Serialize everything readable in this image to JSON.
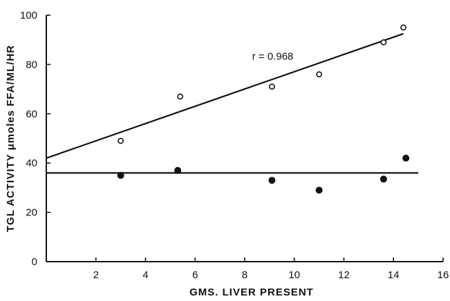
{
  "chart_data": {
    "type": "scatter",
    "title": "",
    "xlabel": "GMS. LIVER PRESENT",
    "ylabel": "TGL ACTIVITY μmoles FFA/ML/HR",
    "xlim": [
      0,
      16
    ],
    "ylim": [
      0,
      100
    ],
    "x_ticks": [
      2,
      4,
      6,
      8,
      10,
      12,
      14,
      16
    ],
    "y_ticks": [
      0,
      20,
      40,
      60,
      80,
      100
    ],
    "grid": false,
    "series": [
      {
        "marker": "open-circle",
        "x": [
          3.0,
          5.4,
          9.1,
          11.0,
          13.6,
          14.4
        ],
        "y": [
          49,
          67,
          71,
          76,
          89,
          95
        ],
        "fit_line": {
          "x": [
            0,
            14.4
          ],
          "y": [
            42,
            92.5
          ]
        }
      },
      {
        "marker": "filled-circle",
        "x": [
          3.0,
          5.3,
          9.1,
          11.0,
          13.6,
          14.5
        ],
        "y": [
          35,
          37,
          33,
          29,
          33.5,
          42
        ],
        "fit_line": {
          "x": [
            0,
            15
          ],
          "y": [
            36,
            36
          ]
        }
      }
    ],
    "annotations": [
      {
        "text": "r = 0.968",
        "x": 8.3,
        "y": 82
      }
    ]
  }
}
